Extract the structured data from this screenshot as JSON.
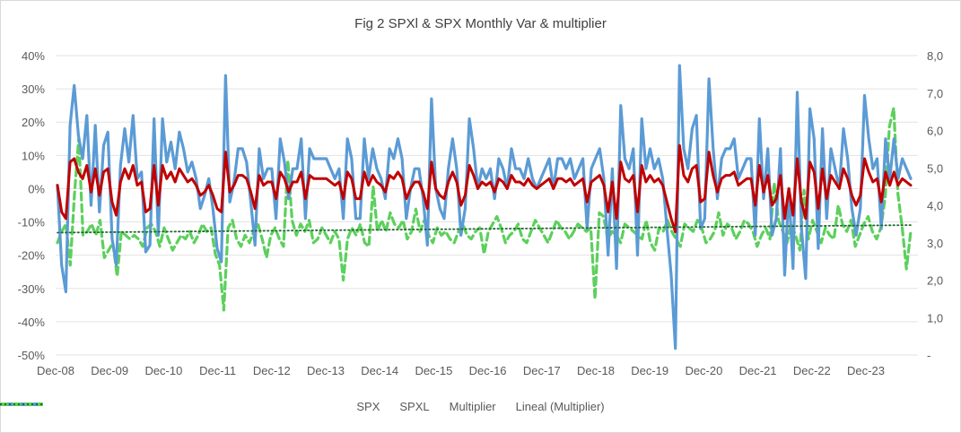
{
  "chart_data": {
    "type": "line",
    "title": "Fig 2  SPXl & SPX Monthly Var & multiplier",
    "x_tick_labels": [
      "Dec-08",
      "Dec-09",
      "Dec-10",
      "Dec-11",
      "Dec-12",
      "Dec-13",
      "Dec-14",
      "Dec-15",
      "Dec-16",
      "Dec-17",
      "Dec-18",
      "Dec-19",
      "Dec-20",
      "Dec-21",
      "Dec-22",
      "Dec-23"
    ],
    "y_left": {
      "ticks": [
        "40%",
        "30%",
        "20%",
        "10%",
        "0%",
        "-10%",
        "-20%",
        "-30%",
        "-40%",
        "-50%"
      ],
      "range": [
        -0.5,
        0.4
      ]
    },
    "y_right": {
      "ticks": [
        "8,0",
        "7,0",
        "6,0",
        "5,0",
        "4,0",
        "3,0",
        "2,0",
        "1,0",
        "-"
      ],
      "range": [
        0,
        8
      ]
    },
    "grid": "horizontal",
    "legend_position": "bottom",
    "series": [
      {
        "name": "SPX",
        "axis": "left",
        "color": "#c00000",
        "style": "solid",
        "values": [
          0.01,
          -0.07,
          -0.09,
          0.08,
          0.09,
          0.05,
          0.03,
          0.07,
          -0.01,
          0.06,
          -0.02,
          0.05,
          0.06,
          -0.04,
          -0.08,
          0.02,
          0.06,
          0.03,
          0.07,
          0.01,
          0.02,
          -0.07,
          -0.06,
          0.07,
          -0.05,
          0.07,
          0.03,
          0.05,
          0.02,
          0.06,
          0.04,
          0.02,
          0.03,
          0.01,
          -0.02,
          -0.01,
          0.01,
          -0.02,
          -0.06,
          -0.07,
          0.11,
          -0.01,
          0.01,
          0.04,
          0.04,
          0.03,
          -0.01,
          -0.06,
          0.04,
          0.01,
          0.02,
          0.02,
          -0.03,
          0.05,
          0.03,
          -0.01,
          0.02,
          0.02,
          0.05,
          -0.03,
          0.04,
          0.03,
          0.03,
          0.03,
          0.03,
          0.02,
          0.01,
          0.02,
          -0.03,
          0.05,
          0.03,
          -0.03,
          -0.03,
          0.05,
          0.01,
          0.04,
          0.02,
          0.01,
          -0.01,
          0.04,
          0.03,
          0.05,
          0.03,
          -0.03,
          0.0,
          0.02,
          0.02,
          -0.01,
          -0.06,
          0.08,
          0.0,
          -0.02,
          -0.03,
          0.02,
          0.05,
          0.02,
          -0.05,
          -0.02,
          0.07,
          0.04,
          0.0,
          0.02,
          0.01,
          0.02,
          -0.01,
          0.03,
          0.02,
          0.0,
          0.04,
          0.02,
          0.02,
          0.01,
          0.03,
          0.01,
          0.0,
          0.01,
          0.02,
          0.03,
          0.0,
          0.03,
          0.03,
          0.02,
          0.03,
          0.01,
          0.02,
          0.03,
          -0.04,
          0.02,
          0.03,
          0.04,
          0.01,
          -0.07,
          0.02,
          -0.09,
          0.08,
          0.03,
          0.02,
          0.04,
          -0.07,
          0.07,
          0.02,
          0.04,
          0.02,
          0.03,
          0.01,
          -0.04,
          -0.09,
          -0.13,
          0.13,
          0.04,
          0.02,
          0.06,
          0.07,
          -0.04,
          -0.03,
          0.11,
          0.04,
          -0.01,
          0.03,
          0.04,
          0.04,
          0.05,
          0.01,
          0.02,
          0.03,
          0.03,
          -0.05,
          0.07,
          -0.01,
          0.04,
          -0.05,
          -0.03,
          0.04,
          -0.09,
          0.0,
          -0.08,
          0.09,
          -0.04,
          -0.09,
          0.08,
          0.05,
          -0.06,
          0.06,
          -0.03,
          0.04,
          0.02,
          0.0,
          0.06,
          0.03,
          -0.02,
          -0.05,
          -0.02,
          0.09,
          0.05,
          0.02,
          0.03,
          -0.04,
          0.05,
          0.01,
          0.05,
          0.01,
          0.03,
          0.02,
          0.01
        ]
      },
      {
        "name": "SPXL",
        "axis": "left",
        "color": "#5b9bd5",
        "style": "solid",
        "values": [
          0.01,
          -0.23,
          -0.31,
          0.19,
          0.31,
          0.16,
          0.09,
          0.22,
          -0.05,
          0.19,
          -0.07,
          0.13,
          0.17,
          -0.15,
          -0.23,
          0.07,
          0.18,
          0.08,
          0.22,
          0.03,
          0.05,
          -0.19,
          -0.17,
          0.21,
          -0.14,
          0.21,
          0.08,
          0.14,
          0.06,
          0.17,
          0.12,
          0.05,
          0.08,
          0.03,
          -0.06,
          -0.02,
          0.03,
          -0.06,
          -0.18,
          -0.22,
          0.34,
          -0.04,
          0.02,
          0.12,
          0.12,
          0.08,
          -0.04,
          -0.17,
          0.12,
          0.03,
          0.06,
          0.06,
          -0.09,
          0.15,
          0.08,
          -0.03,
          0.06,
          0.06,
          0.15,
          -0.09,
          0.12,
          0.09,
          0.09,
          0.09,
          0.09,
          0.06,
          0.03,
          0.06,
          -0.09,
          0.15,
          0.09,
          -0.09,
          -0.09,
          0.15,
          0.03,
          0.12,
          0.06,
          0.03,
          -0.03,
          0.12,
          0.09,
          0.15,
          0.09,
          -0.09,
          0.0,
          0.06,
          0.06,
          -0.03,
          -0.17,
          0.27,
          0.0,
          -0.06,
          -0.09,
          0.06,
          0.15,
          0.06,
          -0.14,
          -0.06,
          0.21,
          0.12,
          0.0,
          0.06,
          0.03,
          0.06,
          -0.03,
          0.09,
          0.06,
          0.0,
          0.12,
          0.06,
          0.06,
          0.03,
          0.09,
          0.03,
          0.0,
          0.03,
          0.06,
          0.09,
          0.0,
          0.09,
          0.09,
          0.06,
          0.09,
          0.03,
          0.06,
          0.09,
          -0.12,
          0.06,
          0.09,
          0.12,
          0.03,
          -0.2,
          0.06,
          -0.24,
          0.25,
          0.09,
          0.06,
          0.12,
          -0.2,
          0.21,
          0.06,
          0.12,
          0.06,
          0.09,
          0.03,
          -0.12,
          -0.26,
          -0.48,
          0.37,
          0.12,
          0.06,
          0.18,
          0.22,
          -0.12,
          -0.09,
          0.33,
          0.12,
          -0.03,
          0.09,
          0.12,
          0.12,
          0.15,
          0.03,
          0.06,
          0.09,
          0.09,
          -0.14,
          0.21,
          -0.03,
          0.12,
          -0.14,
          -0.09,
          0.12,
          -0.26,
          0.0,
          -0.24,
          0.29,
          -0.12,
          -0.27,
          0.24,
          0.15,
          -0.18,
          0.18,
          -0.09,
          0.12,
          0.06,
          0.0,
          0.18,
          0.09,
          -0.06,
          -0.14,
          -0.06,
          0.28,
          0.15,
          0.06,
          0.09,
          -0.12,
          0.15,
          0.03,
          0.15,
          0.03,
          0.09,
          0.06,
          0.03
        ]
      },
      {
        "name": "Multiplier",
        "axis": "right",
        "color": "#5cd05c",
        "style": "dashed",
        "values": [
          3.0,
          3.3,
          3.5,
          2.4,
          4.3,
          5.8,
          3.2,
          3.3,
          3.5,
          3.2,
          3.6,
          2.6,
          2.8,
          3.0,
          2.1,
          3.3,
          3.2,
          3.1,
          3.2,
          3.1,
          2.9,
          3.4,
          3.5,
          3.3,
          2.9,
          3.4,
          3.1,
          2.8,
          3.0,
          3.2,
          3.1,
          3.3,
          3.0,
          3.2,
          3.5,
          3.3,
          3.4,
          2.7,
          2.4,
          1.2,
          3.4,
          3.6,
          3.1,
          2.9,
          3.2,
          3.0,
          3.3,
          3.5,
          3.1,
          2.6,
          3.2,
          3.4,
          3.1,
          2.9,
          5.2,
          3.6,
          3.2,
          3.5,
          3.3,
          3.6,
          3.0,
          3.1,
          3.4,
          3.2,
          3.0,
          3.3,
          3.1,
          2.0,
          3.1,
          3.4,
          3.2,
          3.5,
          3.0,
          2.9,
          4.5,
          3.3,
          3.6,
          3.3,
          3.8,
          3.5,
          3.4,
          3.6,
          3.1,
          3.3,
          3.9,
          3.3,
          3.6,
          3.2,
          3.0,
          3.4,
          3.2,
          3.3,
          3.1,
          3.0,
          3.3,
          3.5,
          3.2,
          3.1,
          3.3,
          3.4,
          2.7,
          3.3,
          3.5,
          3.7,
          3.4,
          3.0,
          3.2,
          3.3,
          3.5,
          3.1,
          3.0,
          3.3,
          3.6,
          3.4,
          3.2,
          3.0,
          3.3,
          3.6,
          3.4,
          3.3,
          3.1,
          3.3,
          3.5,
          3.4,
          3.3,
          3.4,
          1.5,
          3.8,
          3.7,
          3.1,
          3.3,
          3.2,
          3.0,
          3.5,
          3.4,
          3.3,
          3.2,
          3.1,
          3.6,
          3.0,
          2.8,
          3.4,
          3.3,
          3.6,
          3.3,
          3.1,
          2.9,
          3.5,
          3.4,
          3.3,
          3.6,
          3.4,
          3.0,
          3.1,
          3.3,
          3.8,
          3.2,
          3.5,
          3.4,
          3.1,
          3.3,
          3.6,
          3.5,
          3.3,
          2.9,
          3.2,
          3.4,
          3.1,
          4.6,
          3.6,
          3.3,
          3.0,
          3.5,
          3.2,
          2.8,
          4.4,
          3.1,
          3.6,
          3.3,
          3.0,
          3.4,
          3.2,
          3.1,
          4.0,
          3.5,
          3.3,
          3.6,
          2.9,
          3.2,
          3.5,
          3.7,
          3.3,
          3.1,
          3.4,
          4.2,
          6.1,
          6.6,
          4.3,
          3.4,
          2.3,
          3.3
        ]
      },
      {
        "name": "Lineal (Multiplier)",
        "axis": "right",
        "color": "#1e6b2e",
        "style": "dotted",
        "values": [
          3.27,
          3.47
        ]
      }
    ]
  }
}
